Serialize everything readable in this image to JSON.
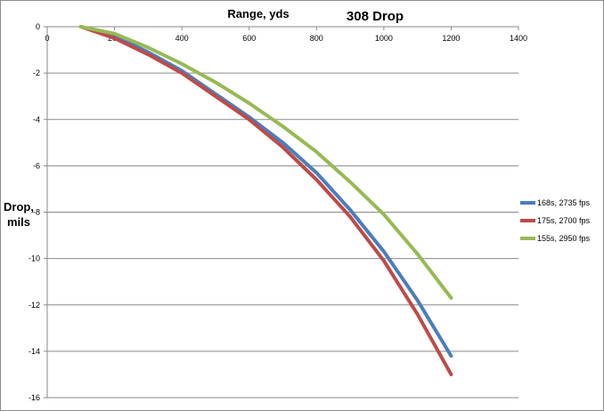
{
  "chart_data": {
    "type": "line",
    "title": "308 Drop",
    "xlabel": "Range, yds",
    "ylabel_lines": [
      "Drop,",
      "mils"
    ],
    "xlim": [
      0,
      1400
    ],
    "ylim": [
      -16,
      0
    ],
    "xticks": [
      0,
      200,
      400,
      600,
      800,
      1000,
      1200,
      1400
    ],
    "yticks": [
      0,
      -2,
      -4,
      -6,
      -8,
      -10,
      -12,
      -14,
      -16
    ],
    "x_axis_position": "top",
    "grid": "horizontal",
    "legend_position": "right",
    "series": [
      {
        "name": "168s, 2735 fps",
        "color": "#4a7ebb",
        "x": [
          100,
          200,
          300,
          400,
          500,
          600,
          700,
          800,
          900,
          1000,
          1100,
          1200
        ],
        "y": [
          0,
          -0.4,
          -1.1,
          -1.9,
          -2.9,
          -3.9,
          -5.0,
          -6.3,
          -7.9,
          -9.7,
          -11.8,
          -14.2
        ]
      },
      {
        "name": "175s, 2700 fps",
        "color": "#be4b48",
        "x": [
          100,
          200,
          300,
          400,
          500,
          600,
          700,
          800,
          900,
          1000,
          1100,
          1200
        ],
        "y": [
          0,
          -0.5,
          -1.2,
          -2.0,
          -3.0,
          -4.0,
          -5.2,
          -6.6,
          -8.2,
          -10.1,
          -12.4,
          -15.0
        ]
      },
      {
        "name": "155s, 2950 fps",
        "color": "#98b954",
        "x": [
          100,
          200,
          300,
          400,
          500,
          600,
          700,
          800,
          900,
          1000,
          1100,
          1200
        ],
        "y": [
          0,
          -0.3,
          -0.9,
          -1.6,
          -2.4,
          -3.3,
          -4.3,
          -5.4,
          -6.7,
          -8.1,
          -9.8,
          -11.7
        ]
      }
    ]
  }
}
